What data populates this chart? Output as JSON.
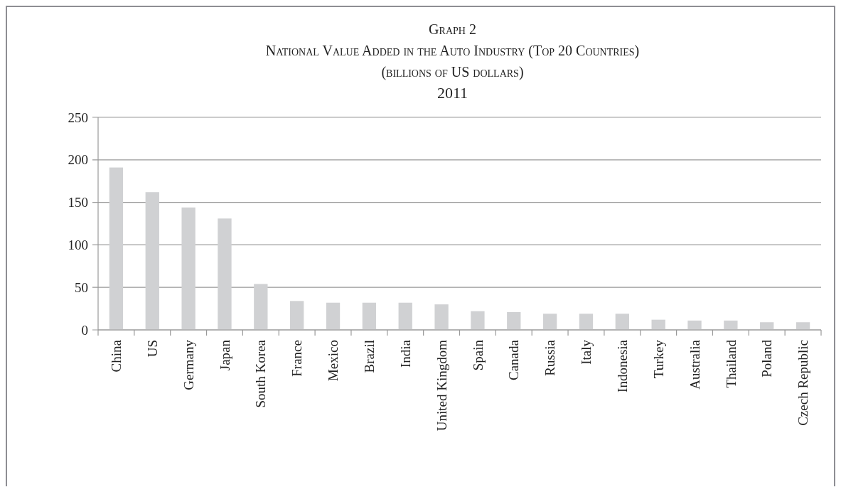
{
  "chart_data": {
    "type": "bar",
    "title": "Graph 2\nNational Value Added in the Auto Industry (Top 20 Countries)",
    "subtitle": "(billions of US dollars)\n2011",
    "categories": [
      "China",
      "US",
      "Germany",
      "Japan",
      "South Korea",
      "France",
      "Mexico",
      "Brazil",
      "India",
      "United Kingdom",
      "Spain",
      "Canada",
      "Russia",
      "Italy",
      "Indonesia",
      "Turkey",
      "Australia",
      "Thailand",
      "Poland",
      "Czech Republic"
    ],
    "values": [
      191,
      162,
      144,
      131,
      54,
      34,
      32,
      32,
      32,
      30,
      22,
      21,
      19,
      19,
      19,
      12,
      11,
      11,
      9,
      9
    ],
    "color": "#d0d1d3",
    "ylim": [
      0,
      250
    ],
    "yticks": [
      0,
      50,
      100,
      150,
      200,
      250
    ],
    "grid": "y"
  }
}
